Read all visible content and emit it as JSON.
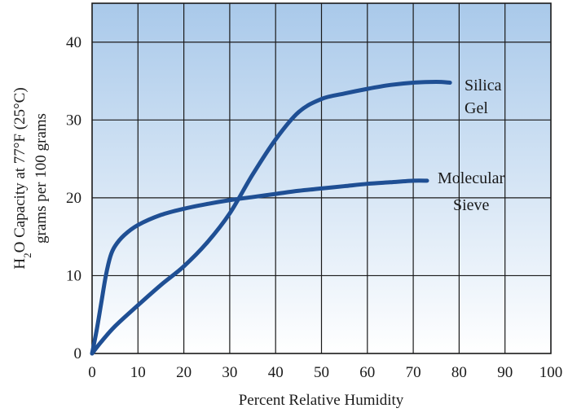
{
  "chart_data": {
    "type": "line",
    "xlabel": "Percent Relative Humidity",
    "ylabel": {
      "line1_prefix": "H",
      "line1_sub": "2",
      "line1_rest": "O Capacity at 77°F (25°C)",
      "line2": "grams per 100 grams"
    },
    "xlim": [
      0,
      100
    ],
    "ylim": [
      0,
      45
    ],
    "x_ticks": [
      0,
      10,
      20,
      30,
      40,
      50,
      60,
      70,
      80,
      90,
      100
    ],
    "y_ticks": [
      0,
      10,
      20,
      30,
      40
    ],
    "grid": true,
    "background_gradient": [
      "#a9c9ea",
      "#ffffff"
    ],
    "series": [
      {
        "name": "Silica Gel",
        "label_lines": [
          "Silica",
          "Gel"
        ],
        "color": "#1f4f94",
        "x": [
          0,
          2,
          5,
          10,
          15,
          20,
          25,
          30,
          35,
          40,
          45,
          50,
          55,
          60,
          65,
          70,
          75,
          78
        ],
        "y": [
          0,
          1.5,
          3.5,
          6.2,
          8.8,
          11.2,
          14.2,
          18,
          23,
          27.5,
          31,
          32.7,
          33.4,
          34,
          34.5,
          34.8,
          34.9,
          34.8
        ]
      },
      {
        "name": "Molecular Sieve",
        "label_lines": [
          "Molecular",
          "Sieve"
        ],
        "color": "#1f4f94",
        "x": [
          0,
          1,
          2,
          3,
          4,
          5,
          7,
          10,
          15,
          20,
          25,
          30,
          35,
          40,
          45,
          50,
          55,
          60,
          65,
          70,
          73
        ],
        "y": [
          0,
          3,
          6.5,
          10,
          12.5,
          13.8,
          15.2,
          16.5,
          17.8,
          18.6,
          19.2,
          19.7,
          20.1,
          20.5,
          20.9,
          21.2,
          21.5,
          21.8,
          22,
          22.2,
          22.2
        ]
      }
    ]
  }
}
